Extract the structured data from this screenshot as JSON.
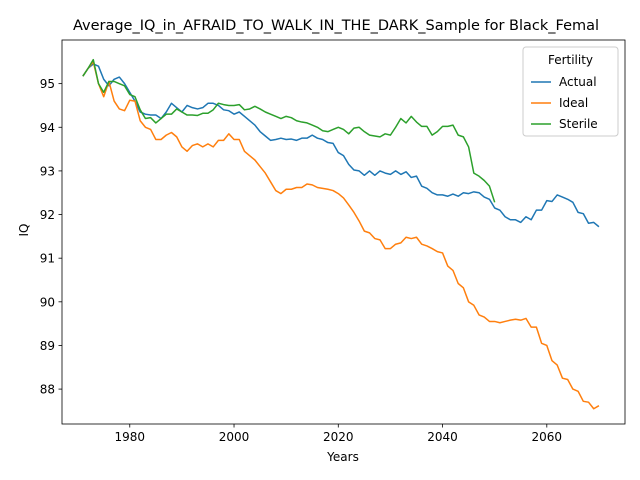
{
  "chart_data": {
    "type": "line",
    "title": "Average_IQ_in_AFRAID_TO_WALK_IN_THE_DARK_Sample for Black_Femal",
    "xlabel": "Years",
    "ylabel": "IQ",
    "xlim": [
      1967,
      2075
    ],
    "ylim": [
      87.2,
      96.0
    ],
    "xticks": [
      1980,
      2000,
      2020,
      2040,
      2060
    ],
    "yticks": [
      88,
      89,
      90,
      91,
      92,
      93,
      94,
      95
    ],
    "legend": {
      "title": "Fertility",
      "placement": "top-right"
    },
    "grid": false,
    "series": [
      {
        "name": "Actual",
        "color": "#1f77b4",
        "x": [
          1971,
          1972,
          1973,
          1974,
          1975,
          1976,
          1977,
          1978,
          1979,
          1980,
          1981,
          1982,
          1983,
          1984,
          1985,
          1986,
          1987,
          1988,
          1989,
          1990,
          1991,
          1992,
          1993,
          1994,
          1995,
          1996,
          1997,
          1998,
          1999,
          2000,
          2001,
          2002,
          2003,
          2004,
          2005,
          2006,
          2007,
          2008,
          2009,
          2010,
          2011,
          2012,
          2013,
          2014,
          2015,
          2016,
          2017,
          2018,
          2019,
          2020,
          2021,
          2022,
          2023,
          2024,
          2025,
          2026,
          2027,
          2028,
          2029,
          2030,
          2031,
          2032,
          2033,
          2034,
          2035,
          2036,
          2037,
          2038,
          2039,
          2040,
          2041,
          2042,
          2043,
          2044,
          2045,
          2046,
          2047,
          2048,
          2049,
          2050,
          2051,
          2052,
          2053,
          2054,
          2055,
          2056,
          2057,
          2058,
          2059,
          2060,
          2061,
          2062,
          2063,
          2064,
          2065,
          2066,
          2067,
          2068,
          2069,
          2070
        ],
        "values": [
          95.17,
          95.35,
          95.45,
          95.4,
          95.1,
          94.95,
          95.1,
          95.15,
          95.0,
          94.8,
          94.6,
          94.35,
          94.3,
          94.28,
          94.28,
          94.2,
          94.35,
          94.55,
          94.45,
          94.35,
          94.5,
          94.45,
          94.42,
          94.45,
          94.55,
          94.55,
          94.5,
          94.4,
          94.38,
          94.3,
          94.35,
          94.25,
          94.15,
          94.05,
          93.9,
          93.8,
          93.7,
          93.72,
          93.75,
          93.72,
          93.73,
          93.7,
          93.75,
          93.75,
          93.82,
          93.75,
          93.72,
          93.65,
          93.63,
          93.42,
          93.35,
          93.15,
          93.02,
          93.0,
          92.9,
          93.0,
          92.9,
          93.0,
          92.95,
          92.92,
          93.0,
          92.92,
          92.98,
          92.85,
          92.88,
          92.65,
          92.6,
          92.5,
          92.45,
          92.45,
          92.42,
          92.47,
          92.42,
          92.5,
          92.48,
          92.52,
          92.5,
          92.4,
          92.35,
          92.15,
          92.1,
          91.95,
          91.88,
          91.88,
          91.82,
          91.95,
          91.88,
          92.1,
          92.1,
          92.32,
          92.3,
          92.45,
          92.4,
          92.35,
          92.28,
          92.05,
          92.02,
          91.8,
          91.82,
          91.72
        ]
      },
      {
        "name": "Ideal",
        "color": "#ff7f0e",
        "x": [
          1971,
          1972,
          1973,
          1974,
          1975,
          1976,
          1977,
          1978,
          1979,
          1980,
          1981,
          1982,
          1983,
          1984,
          1985,
          1986,
          1987,
          1988,
          1989,
          1990,
          1991,
          1992,
          1993,
          1994,
          1995,
          1996,
          1997,
          1998,
          1999,
          2000,
          2001,
          2002,
          2003,
          2004,
          2005,
          2006,
          2007,
          2008,
          2009,
          2010,
          2011,
          2012,
          2013,
          2014,
          2015,
          2016,
          2017,
          2018,
          2019,
          2020,
          2021,
          2022,
          2023,
          2024,
          2025,
          2026,
          2027,
          2028,
          2029,
          2030,
          2031,
          2032,
          2033,
          2034,
          2035,
          2036,
          2037,
          2038,
          2039,
          2040,
          2041,
          2042,
          2043,
          2044,
          2045,
          2046,
          2047,
          2048,
          2049,
          2050,
          2051,
          2052,
          2053,
          2054,
          2055,
          2056,
          2057,
          2058,
          2059,
          2060,
          2061,
          2062,
          2063,
          2064,
          2065,
          2066,
          2067,
          2068,
          2069,
          2070
        ],
        "values": [
          95.17,
          95.35,
          95.5,
          95.0,
          94.7,
          95.05,
          94.6,
          94.42,
          94.38,
          94.62,
          94.6,
          94.15,
          94.0,
          93.95,
          93.72,
          93.72,
          93.82,
          93.88,
          93.78,
          93.55,
          93.45,
          93.58,
          93.62,
          93.55,
          93.62,
          93.55,
          93.7,
          93.7,
          93.85,
          93.72,
          93.72,
          93.45,
          93.35,
          93.25,
          93.1,
          92.95,
          92.75,
          92.55,
          92.48,
          92.58,
          92.58,
          92.62,
          92.62,
          92.7,
          92.68,
          92.62,
          92.6,
          92.58,
          92.55,
          92.48,
          92.38,
          92.22,
          92.05,
          91.85,
          91.62,
          91.58,
          91.45,
          91.42,
          91.22,
          91.22,
          91.32,
          91.35,
          91.48,
          91.45,
          91.48,
          91.32,
          91.28,
          91.22,
          91.15,
          91.12,
          90.82,
          90.72,
          90.42,
          90.32,
          90.0,
          89.92,
          89.7,
          89.65,
          89.55,
          89.55,
          89.52,
          89.55,
          89.58,
          89.6,
          89.58,
          89.62,
          89.42,
          89.42,
          89.05,
          89.0,
          88.65,
          88.55,
          88.25,
          88.22,
          88.0,
          87.95,
          87.72,
          87.7,
          87.55,
          87.62
        ]
      },
      {
        "name": "Sterile",
        "color": "#2ca02c",
        "x": [
          1971,
          1972,
          1973,
          1974,
          1975,
          1976,
          1977,
          1978,
          1979,
          1980,
          1981,
          1982,
          1983,
          1984,
          1985,
          1986,
          1987,
          1988,
          1989,
          1990,
          1991,
          1992,
          1993,
          1994,
          1995,
          1996,
          1997,
          1998,
          1999,
          2000,
          2001,
          2002,
          2003,
          2004,
          2005,
          2006,
          2007,
          2008,
          2009,
          2010,
          2011,
          2012,
          2013,
          2014,
          2015,
          2016,
          2017,
          2018,
          2019,
          2020,
          2021,
          2022,
          2023,
          2024,
          2025,
          2026,
          2027,
          2028,
          2029,
          2030,
          2031,
          2032,
          2033,
          2034,
          2035,
          2036,
          2037,
          2038,
          2039,
          2040,
          2041,
          2042,
          2043,
          2044,
          2045,
          2046,
          2047,
          2048,
          2049,
          2050
        ],
        "values": [
          95.17,
          95.35,
          95.55,
          95.0,
          94.8,
          95.05,
          95.05,
          95.0,
          94.95,
          94.75,
          94.7,
          94.4,
          94.2,
          94.22,
          94.1,
          94.2,
          94.3,
          94.3,
          94.42,
          94.35,
          94.28,
          94.28,
          94.27,
          94.32,
          94.32,
          94.4,
          94.55,
          94.52,
          94.5,
          94.5,
          94.52,
          94.4,
          94.42,
          94.48,
          94.42,
          94.35,
          94.3,
          94.25,
          94.2,
          94.25,
          94.22,
          94.15,
          94.12,
          94.1,
          94.05,
          94.0,
          93.92,
          93.9,
          93.95,
          94.0,
          93.95,
          93.85,
          93.98,
          94.0,
          93.9,
          93.82,
          93.8,
          93.78,
          93.85,
          93.82,
          94.0,
          94.2,
          94.1,
          94.25,
          94.12,
          94.02,
          94.02,
          93.82,
          93.9,
          94.02,
          94.02,
          94.05,
          93.82,
          93.78,
          93.55,
          92.95,
          92.88,
          92.78,
          92.65,
          92.28
        ]
      }
    ]
  }
}
